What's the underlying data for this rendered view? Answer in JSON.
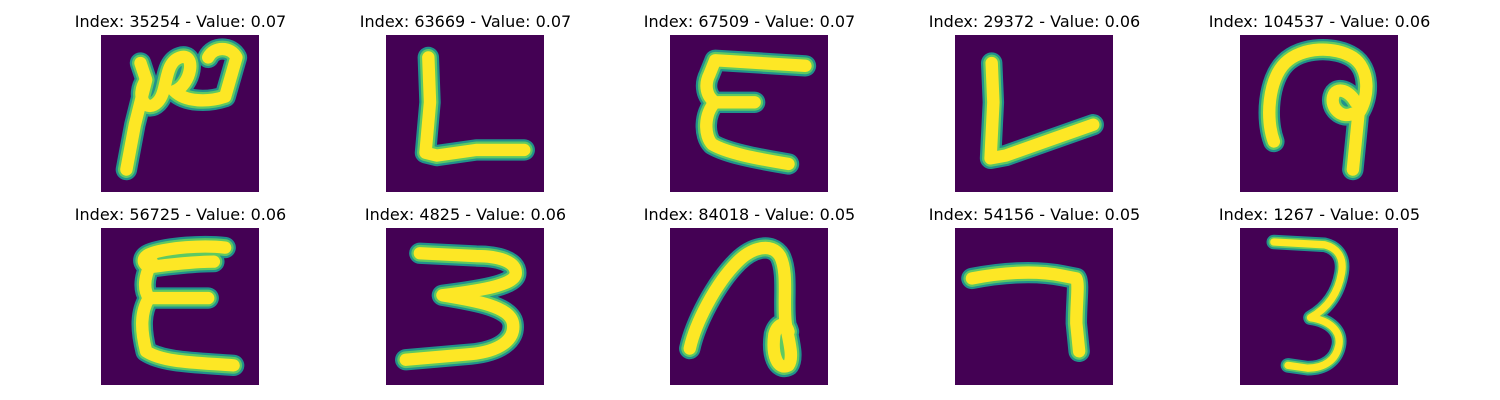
{
  "colors": {
    "background": "#440154",
    "stroke_edge": "#21918c",
    "stroke_mid": "#5ec962",
    "stroke_core": "#fde725"
  },
  "panels": [
    {
      "title": "Index: 35254 - Value: 0.07",
      "glyph": "handwritten-letter-N-like"
    },
    {
      "title": "Index: 63669 - Value: 0.07",
      "glyph": "handwritten-letter-L"
    },
    {
      "title": "Index: 67509 - Value: 0.07",
      "glyph": "handwritten-letter-E"
    },
    {
      "title": "Index: 29372 - Value: 0.06",
      "glyph": "handwritten-letter-L-slanted"
    },
    {
      "title": "Index: 104537 - Value: 0.06",
      "glyph": "handwritten-letter-P-hook"
    },
    {
      "title": "Index: 56725 - Value: 0.06",
      "glyph": "handwritten-letter-E"
    },
    {
      "title": "Index: 4825 - Value: 0.06",
      "glyph": "handwritten-digit-3"
    },
    {
      "title": "Index: 84018 - Value: 0.05",
      "glyph": "handwritten-letter-n-loop"
    },
    {
      "title": "Index: 54156 - Value: 0.05",
      "glyph": "handwritten-digit-7"
    },
    {
      "title": "Index: 1267 - Value: 0.05",
      "glyph": "handwritten-digit-3-thin"
    }
  ]
}
